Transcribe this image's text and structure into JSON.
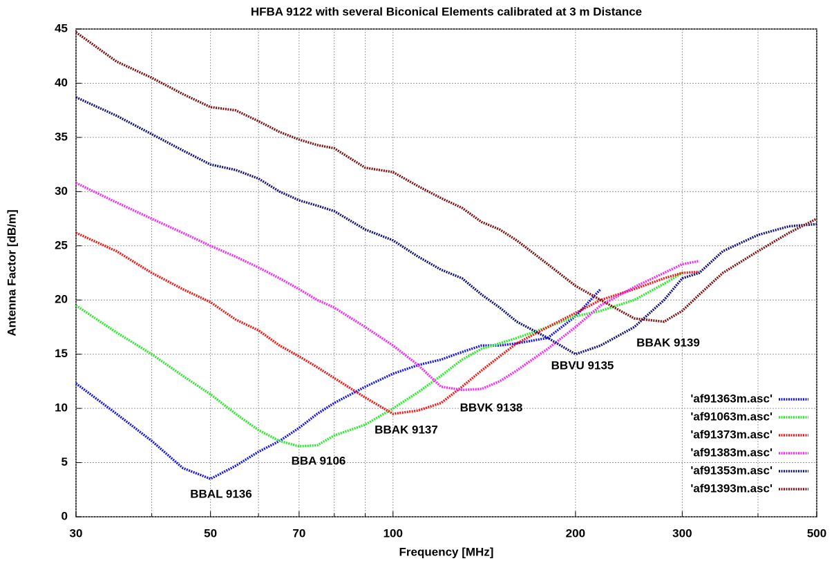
{
  "chart_data": {
    "type": "line",
    "title": "HFBA 9122 with several Biconical Elements calibrated at 3 m Distance",
    "x_label": "Frequency [MHz]",
    "y_label": "Antenna Factor [dB/m]",
    "x_log": true,
    "grid": true,
    "legend": "lower right",
    "xlim": [
      30,
      500
    ],
    "ylim": [
      0,
      45
    ],
    "xticks": [
      30,
      50,
      70,
      100,
      200,
      300,
      500
    ],
    "x_minor_grid": [
      40,
      60,
      80,
      90,
      400
    ],
    "yticks": [
      0,
      5,
      10,
      15,
      20,
      25,
      30,
      35,
      40,
      45
    ],
    "x": [
      30,
      35,
      40,
      45,
      50,
      55,
      60,
      65,
      70,
      75,
      80,
      90,
      100,
      110,
      120,
      130,
      140,
      150,
      160,
      180,
      200,
      220,
      250,
      280,
      300,
      320,
      350,
      400,
      450,
      500
    ],
    "series": [
      {
        "name": "'af91363m.asc'",
        "color": "#1010ff",
        "values": [
          12.3,
          9.5,
          7,
          4.5,
          3.5,
          4.7,
          6,
          7,
          8.2,
          9.5,
          10.5,
          12,
          13.2,
          14,
          14.5,
          15.2,
          15.8,
          15.8,
          16,
          16.5,
          18.5,
          21,
          null,
          null,
          null,
          null,
          null,
          null,
          null,
          null
        ]
      },
      {
        "name": "'af91063m.asc'",
        "color": "#22ee22",
        "values": [
          19.5,
          17,
          15,
          13,
          11.3,
          9.5,
          8,
          7,
          6.5,
          6.6,
          7.5,
          8.5,
          10,
          11.5,
          13,
          14.5,
          15.5,
          16,
          16.5,
          17.5,
          18.5,
          19,
          20,
          21.5,
          22.5,
          null,
          null,
          null,
          null,
          null
        ]
      },
      {
        "name": "'af91373m.asc'",
        "color": "#ff1010",
        "values": [
          26.2,
          24.5,
          22.5,
          21,
          19.8,
          18.2,
          17.2,
          15.8,
          14.8,
          13.8,
          12.8,
          11,
          9.5,
          9.8,
          10.5,
          12,
          13.5,
          14.8,
          16,
          17.5,
          18.8,
          20,
          21,
          22,
          22.5,
          22.6,
          null,
          null,
          null,
          null
        ]
      },
      {
        "name": "'af91383m.asc'",
        "color": "#ff22ff",
        "values": [
          30.8,
          29,
          27.5,
          26.2,
          25,
          24,
          23,
          22,
          21,
          20,
          19.3,
          17.5,
          15.8,
          14,
          12,
          11.7,
          11.8,
          12.5,
          13.5,
          15.5,
          17.5,
          19.5,
          21.2,
          22.5,
          23.3,
          23.6,
          null,
          null,
          null,
          null
        ]
      },
      {
        "name": "'af91353m.asc'",
        "color": "#101080",
        "values": [
          38.7,
          37,
          35.3,
          33.8,
          32.5,
          32,
          31.2,
          30,
          29.2,
          28.7,
          28.2,
          26.5,
          25.5,
          24,
          22.8,
          22,
          20.5,
          19.3,
          18,
          16.5,
          15,
          15.8,
          17.5,
          20,
          22,
          22.5,
          24.5,
          26,
          26.8,
          27
        ]
      },
      {
        "name": "'af91393m.asc'",
        "color": "#801010",
        "values": [
          44.7,
          42,
          40.5,
          39,
          37.8,
          37.5,
          36.5,
          35.5,
          34.8,
          34.3,
          34,
          32.2,
          31.8,
          30.5,
          29.4,
          28.5,
          27.2,
          26.5,
          25.5,
          23.3,
          21.3,
          20,
          18.3,
          18,
          19,
          20.5,
          22.5,
          24.5,
          26.2,
          27.5
        ]
      }
    ],
    "annotations": [
      "BBAL 9136",
      "BBA 9106",
      "BBAK 9137",
      "BBVK 9138",
      "BBVU 9135",
      "BBAK 9139"
    ]
  }
}
